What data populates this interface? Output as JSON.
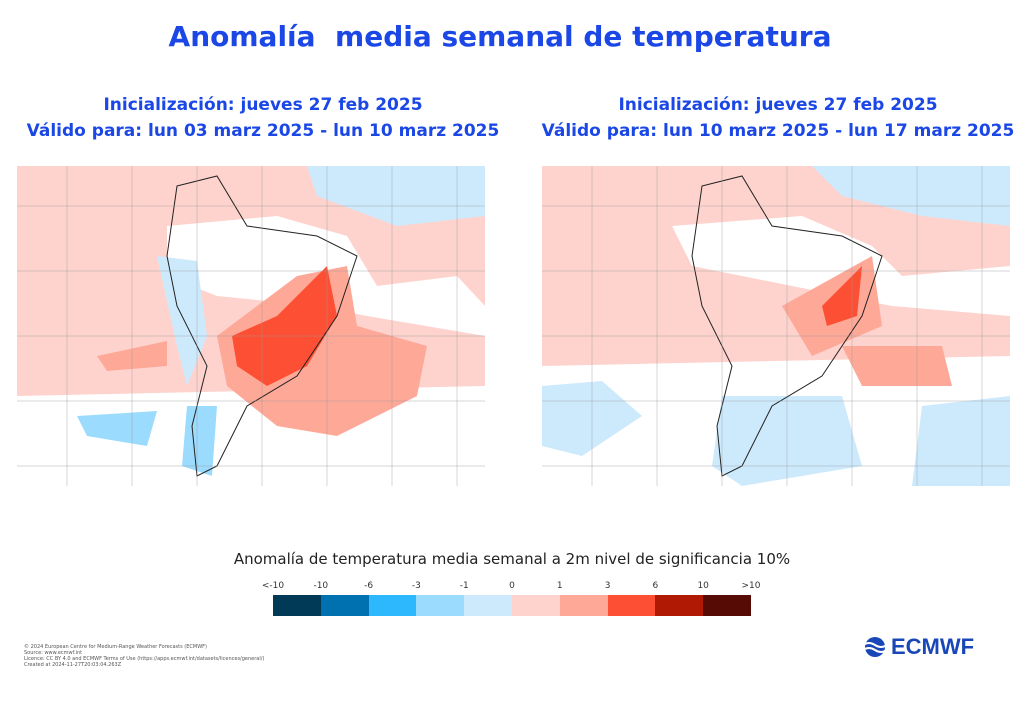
{
  "title": "Anomalía  media semanal de temperatura",
  "panels": [
    {
      "init": "Inicialización: jueves 27 feb 2025",
      "valid": "Válido para: lun 03 marz 2025 - lun 10 marz 2025"
    },
    {
      "init": "Inicialización: jueves 27 feb 2025",
      "valid": "Válido para: lun 10 marz 2025 - lun 17 marz 2025"
    }
  ],
  "colorbar": {
    "title": "Anomalía de temperatura media semanal a 2m nivel de significancia 10%",
    "labels": [
      "<-10",
      "-10",
      "-6",
      "-3",
      "-1",
      "0",
      "1",
      "3",
      "6",
      "10",
      ">10"
    ],
    "colors": [
      "#003a57",
      "#0071b0",
      "#2db7fc",
      "#9bdbfd",
      "#cdeafd",
      "#fed3ce",
      "#fea898",
      "#fd4f33",
      "#b01a05",
      "#560c04"
    ]
  },
  "footer": [
    "© 2024 European Centre for Medium-Range Weather Forecasts (ECMWF)",
    "Source: www.ecmwf.int",
    "Licence: CC BY 4.0 and ECMWF Terms of Use (https://apps.ecmwf.int/datasets/licences/general/)",
    "Created at 2024-11-27T20:03:04.263Z"
  ],
  "logo": "ECMWF"
}
